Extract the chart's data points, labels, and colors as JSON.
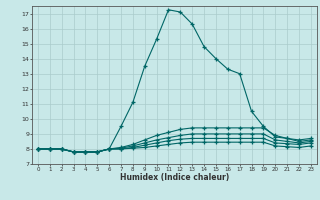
{
  "xlabel": "Humidex (Indice chaleur)",
  "bg_color": "#c8e8e8",
  "grid_color": "#aacccc",
  "line_color": "#006666",
  "xlim": [
    -0.5,
    23.5
  ],
  "ylim": [
    7,
    17.5
  ],
  "yticks": [
    7,
    8,
    9,
    10,
    11,
    12,
    13,
    14,
    15,
    16,
    17
  ],
  "xticks": [
    0,
    1,
    2,
    3,
    4,
    5,
    6,
    7,
    8,
    9,
    10,
    11,
    12,
    13,
    14,
    15,
    16,
    17,
    18,
    19,
    20,
    21,
    22,
    23
  ],
  "line1_x": [
    0,
    1,
    2,
    3,
    4,
    5,
    6,
    7,
    8,
    9,
    10,
    11,
    12,
    13,
    14,
    15,
    16,
    17,
    18,
    19,
    20,
    21,
    22,
    23
  ],
  "line1_y": [
    8.0,
    8.0,
    8.0,
    7.8,
    7.8,
    7.8,
    8.0,
    9.5,
    11.1,
    13.5,
    15.3,
    17.25,
    17.1,
    16.3,
    14.8,
    14.0,
    13.3,
    13.0,
    10.5,
    9.5,
    8.8,
    8.7,
    8.5,
    8.6
  ],
  "line2_x": [
    0,
    1,
    2,
    3,
    4,
    5,
    6,
    7,
    8,
    9,
    10,
    11,
    12,
    13,
    14,
    15,
    16,
    17,
    18,
    19,
    20,
    21,
    22,
    23
  ],
  "line2_y": [
    8.0,
    8.0,
    8.0,
    7.8,
    7.8,
    7.8,
    8.0,
    8.1,
    8.3,
    8.6,
    8.9,
    9.1,
    9.3,
    9.4,
    9.4,
    9.4,
    9.4,
    9.4,
    9.4,
    9.4,
    8.9,
    8.7,
    8.6,
    8.7
  ],
  "line3_x": [
    0,
    1,
    2,
    3,
    4,
    5,
    6,
    7,
    8,
    9,
    10,
    11,
    12,
    13,
    14,
    15,
    16,
    17,
    18,
    19,
    20,
    21,
    22,
    23
  ],
  "line3_y": [
    8.0,
    8.0,
    8.0,
    7.8,
    7.8,
    7.8,
    8.0,
    8.05,
    8.2,
    8.4,
    8.6,
    8.75,
    8.9,
    9.0,
    9.0,
    9.0,
    9.0,
    9.0,
    9.0,
    9.0,
    8.6,
    8.5,
    8.4,
    8.5
  ],
  "line4_x": [
    0,
    1,
    2,
    3,
    4,
    5,
    6,
    7,
    8,
    9,
    10,
    11,
    12,
    13,
    14,
    15,
    16,
    17,
    18,
    19,
    20,
    21,
    22,
    23
  ],
  "line4_y": [
    8.0,
    8.0,
    8.0,
    7.8,
    7.8,
    7.8,
    8.0,
    8.0,
    8.1,
    8.25,
    8.4,
    8.55,
    8.65,
    8.7,
    8.7,
    8.7,
    8.7,
    8.7,
    8.7,
    8.7,
    8.4,
    8.35,
    8.3,
    8.4
  ],
  "line5_x": [
    0,
    1,
    2,
    3,
    4,
    5,
    6,
    7,
    8,
    9,
    10,
    11,
    12,
    13,
    14,
    15,
    16,
    17,
    18,
    19,
    20,
    21,
    22,
    23
  ],
  "line5_y": [
    8.0,
    8.0,
    8.0,
    7.8,
    7.8,
    7.8,
    8.0,
    8.0,
    8.05,
    8.1,
    8.2,
    8.3,
    8.4,
    8.45,
    8.45,
    8.45,
    8.45,
    8.45,
    8.45,
    8.45,
    8.2,
    8.15,
    8.1,
    8.2
  ]
}
